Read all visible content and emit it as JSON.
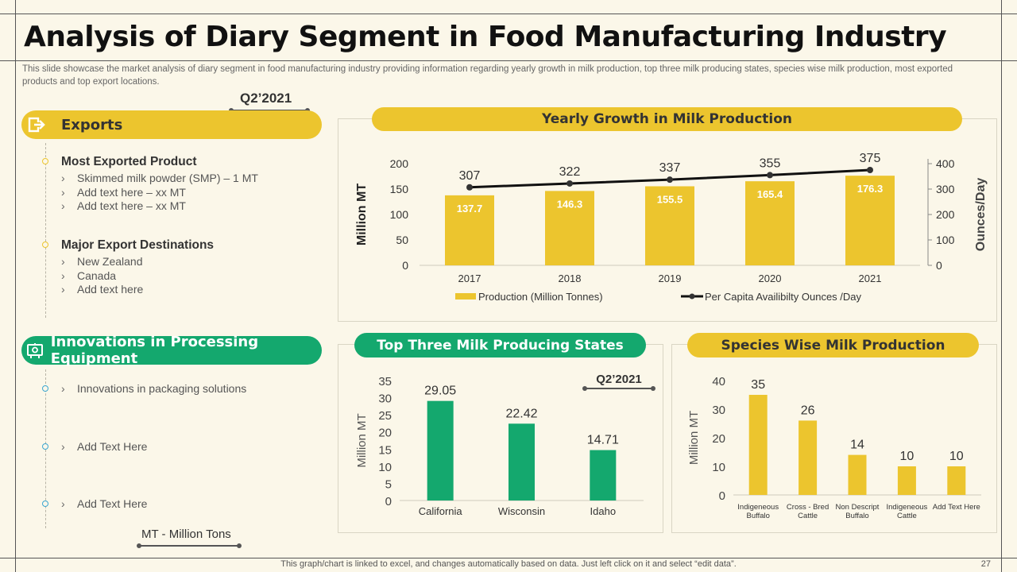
{
  "title": "Analysis of Diary Segment in Food Manufacturing Industry",
  "description": "This slide showcase the market analysis of diary segment in food manufacturing industry providing  information regarding  yearly growth in milk production, top three milk producing states, species wise milk production, most exported products and top export locations.",
  "q_label_top": "Q2’2021",
  "exports": {
    "label": "Exports",
    "most_exported": {
      "heading": "Most Exported Product",
      "items": [
        "Skimmed milk powder (SMP) – 1 MT",
        "Add text here – xx MT",
        "Add text here – xx MT"
      ]
    },
    "destinations": {
      "heading": "Major Export Destinations",
      "items": [
        "New Zealand",
        "Canada",
        "Add text here"
      ]
    }
  },
  "innovations": {
    "label": "Innovations in Processing Equipment",
    "items": [
      "Innovations in packaging solutions",
      "Add Text Here",
      "Add Text Here"
    ]
  },
  "mt_note": "MT - Million Tons",
  "footer": "This graph/chart is linked to excel,  and changes automatically based on data. Just left click on it and select “edit data”.",
  "page_number": "27",
  "colors": {
    "yellow": "#ecc52e",
    "green": "#14a86e",
    "background": "#fbf7e9"
  },
  "chart_data": [
    {
      "type": "bar",
      "title": "Yearly Growth in Milk Production",
      "categories": [
        "2017",
        "2018",
        "2019",
        "2020",
        "2021"
      ],
      "series": [
        {
          "name": "Production (Million Tonnes)",
          "type": "bar",
          "axis": "left",
          "values": [
            137.7,
            146.3,
            155.5,
            165.4,
            176.3
          ],
          "labels": [
            "137.7",
            "146.3",
            "155.5",
            "165.4",
            "176.3"
          ]
        },
        {
          "name": "Per Capita Availibilty Ounces /Day",
          "type": "line",
          "axis": "right",
          "values": [
            307,
            322,
            337,
            355,
            375
          ],
          "labels": [
            "307",
            "322",
            "337",
            "355",
            "375"
          ]
        }
      ],
      "ylabel": "Million MT",
      "y2label": "Ounces/Day",
      "ylim": [
        0,
        200
      ],
      "yticks": [
        "0",
        "50",
        "100",
        "150",
        "200"
      ],
      "y2lim": [
        0,
        400
      ],
      "y2ticks": [
        "0",
        "100",
        "200",
        "300",
        "400"
      ]
    },
    {
      "type": "bar",
      "title": "Top Three Milk Producing States",
      "subtitle": "Q2’2021",
      "categories": [
        "California",
        "Wisconsin",
        "Idaho"
      ],
      "values": [
        29.05,
        22.42,
        14.71
      ],
      "labels": [
        "29.05",
        "22.42",
        "14.71"
      ],
      "ylabel": "Million MT",
      "ylim": [
        0,
        35
      ],
      "yticks": [
        "0",
        "5",
        "10",
        "15",
        "20",
        "25",
        "30",
        "35"
      ]
    },
    {
      "type": "bar",
      "title": "Species Wise Milk Production",
      "categories": [
        [
          "Indigeneous",
          "Buffalo"
        ],
        [
          "Cross - Bred",
          "Cattle"
        ],
        [
          "Non Descript",
          "Buffalo"
        ],
        [
          "Indigeneous",
          "Cattle"
        ],
        [
          "Add Text Here"
        ]
      ],
      "values": [
        35,
        26,
        14,
        10,
        10
      ],
      "labels": [
        "35",
        "26",
        "14",
        "10",
        "10"
      ],
      "ylabel": "Million MT",
      "ylim": [
        0,
        40
      ],
      "yticks": [
        "0",
        "10",
        "20",
        "30",
        "40"
      ]
    }
  ]
}
